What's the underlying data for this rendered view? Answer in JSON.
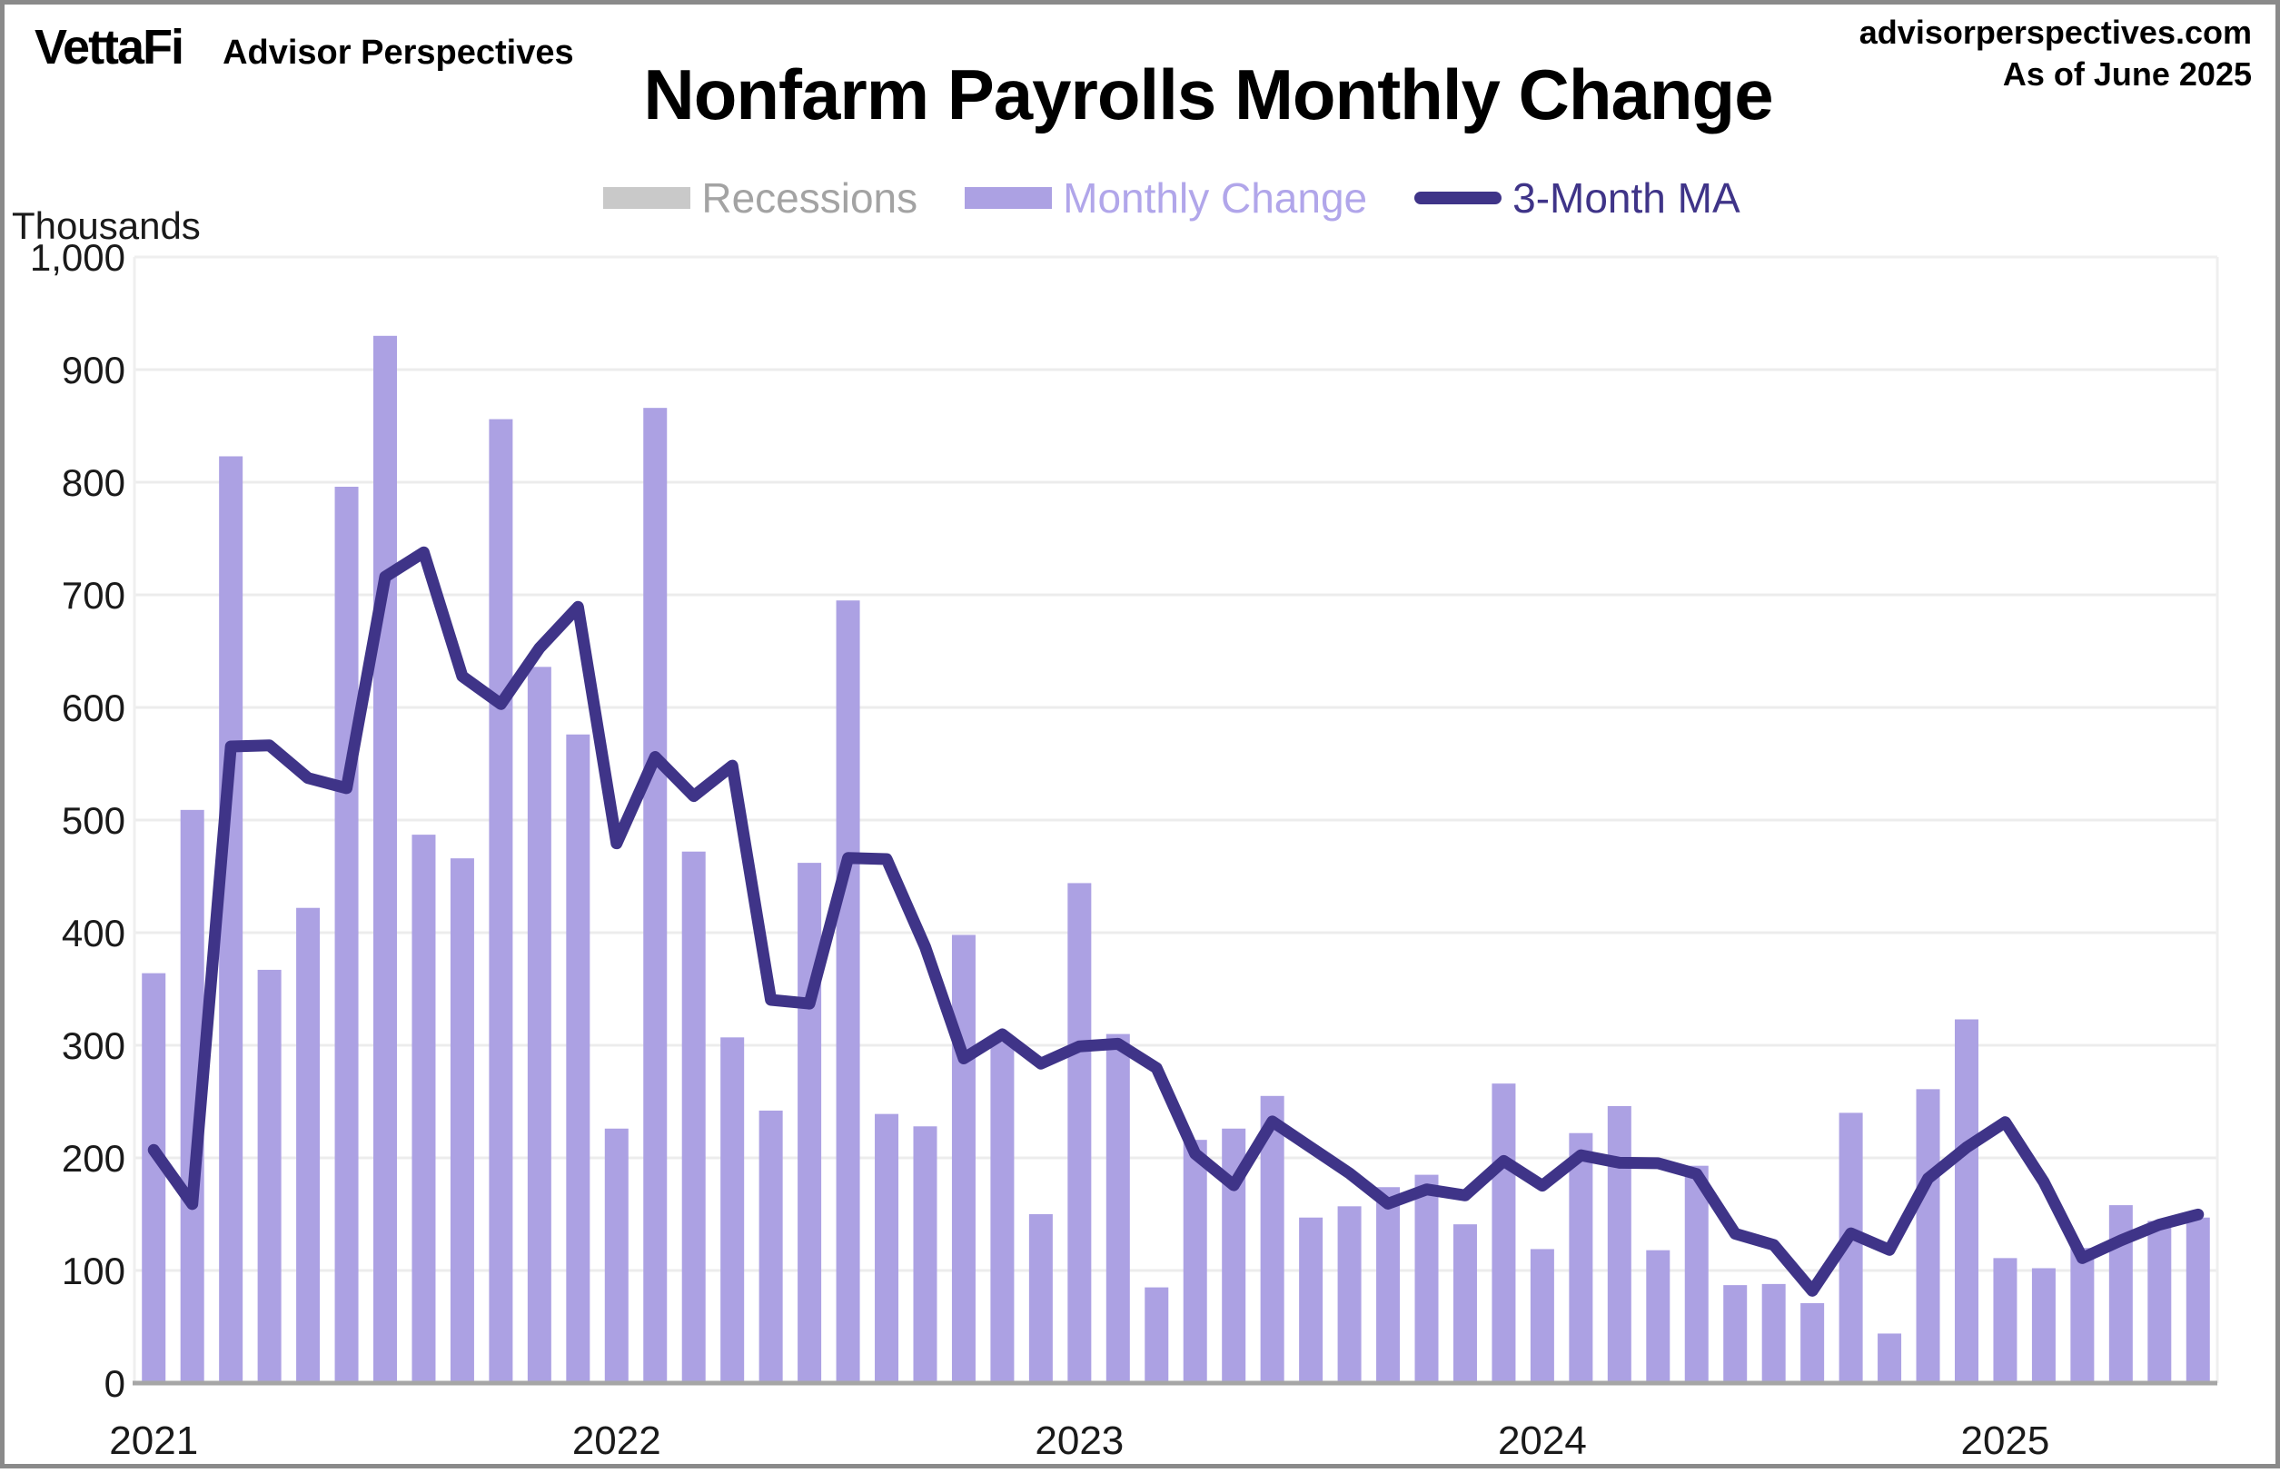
{
  "header": {
    "logo_primary": "VettaFi",
    "logo_secondary": "Advisor Perspectives",
    "site": "advisorperspectives.com",
    "as_of": "As of June 2025"
  },
  "chart_data": {
    "type": "bar",
    "title": "Nonfarm Payrolls Monthly Change",
    "unit_label": "Thousands",
    "xlabel": "",
    "ylabel": "Thousands",
    "ylim": [
      0,
      1000
    ],
    "ytick_step": 100,
    "grid": true,
    "legend_position": "top-center",
    "legend": [
      {
        "label": "Recessions",
        "swatch": "block",
        "color": "#c9c9c9",
        "text_color": "#a3a3a3"
      },
      {
        "label": "Monthly Change",
        "swatch": "block",
        "color": "#aca1e3",
        "text_color": "#b1a6ea"
      },
      {
        "label": "3-Month MA",
        "swatch": "line",
        "color": "#3f3488",
        "text_color": "#3f3488"
      }
    ],
    "yticks": [
      "0",
      "100",
      "200",
      "300",
      "400",
      "500",
      "600",
      "700",
      "800",
      "900",
      "1,000"
    ],
    "xticks": [
      {
        "month_index": 0,
        "label": "2021"
      },
      {
        "month_index": 12,
        "label": "2022"
      },
      {
        "month_index": 24,
        "label": "2023"
      },
      {
        "month_index": 36,
        "label": "2024"
      },
      {
        "month_index": 48,
        "label": "2025"
      }
    ],
    "x": [
      "2021-01",
      "2021-02",
      "2021-03",
      "2021-04",
      "2021-05",
      "2021-06",
      "2021-07",
      "2021-08",
      "2021-09",
      "2021-10",
      "2021-11",
      "2021-12",
      "2022-01",
      "2022-02",
      "2022-03",
      "2022-04",
      "2022-05",
      "2022-06",
      "2022-07",
      "2022-08",
      "2022-09",
      "2022-10",
      "2022-11",
      "2022-12",
      "2023-01",
      "2023-02",
      "2023-03",
      "2023-04",
      "2023-05",
      "2023-06",
      "2023-07",
      "2023-08",
      "2023-09",
      "2023-10",
      "2023-11",
      "2023-12",
      "2024-01",
      "2024-02",
      "2024-03",
      "2024-04",
      "2024-05",
      "2024-06",
      "2024-07",
      "2024-08",
      "2024-09",
      "2024-10",
      "2024-11",
      "2024-12",
      "2025-01",
      "2025-02",
      "2025-03",
      "2025-04",
      "2025-05",
      "2025-06"
    ],
    "series": [
      {
        "name": "Monthly Change",
        "type": "bar",
        "color": "#aca1e3",
        "values": [
          364,
          509,
          823,
          367,
          422,
          796,
          930,
          487,
          466,
          856,
          636,
          576,
          226,
          866,
          472,
          307,
          242,
          462,
          695,
          239,
          228,
          398,
          303,
          150,
          444,
          310,
          85,
          216,
          226,
          255,
          147,
          157,
          174,
          185,
          141,
          266,
          119,
          222,
          246,
          118,
          193,
          87,
          88,
          71,
          240,
          44,
          261,
          323,
          111,
          102,
          120,
          158,
          144,
          147
        ]
      },
      {
        "name": "3-Month MA",
        "type": "line",
        "color": "#3f3488",
        "values": [
          207,
          159,
          565.3,
          566.3,
          537.3,
          528.3,
          716.0,
          737.7,
          627.7,
          603.0,
          652.7,
          689.3,
          479.3,
          556.0,
          521.3,
          548.3,
          340.3,
          337.0,
          466.3,
          465.3,
          387.3,
          288.3,
          309.7,
          283.7,
          299.0,
          301.3,
          279.7,
          203.7,
          175.7,
          232.3,
          209.3,
          186.3,
          159.3,
          172.0,
          166.7,
          197.3,
          175.3,
          202.3,
          195.7,
          195.3,
          185.7,
          132.7,
          122.7,
          82.0,
          133.0,
          118.3,
          181.7,
          209.3,
          231.7,
          178.7,
          111.0,
          126.7,
          140.7,
          149.7
        ]
      },
      {
        "name": "Recessions",
        "type": "area",
        "color": "#c9c9c9",
        "values": []
      }
    ],
    "colors": {
      "gridline": "#ececec",
      "plot_border": "#efefef",
      "axis_line": "#a6a6a6",
      "tick_text": "#1a1a1a"
    }
  }
}
